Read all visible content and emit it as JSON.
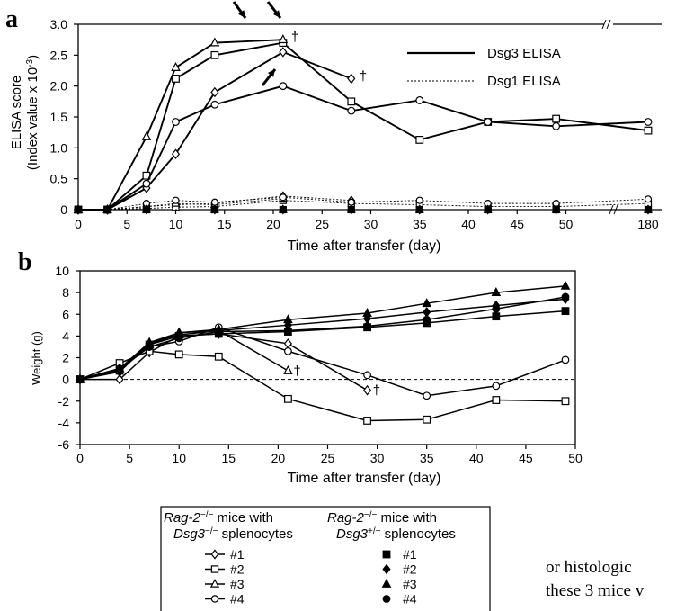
{
  "chart_data": [
    {
      "panel": "a",
      "type": "line",
      "ylabel": [
        "ELISA score",
        "(Index value x 10",
        "-3",
        ")"
      ],
      "xlabel": "Time after transfer (day)",
      "xticks": [
        "0",
        "5",
        "10",
        "15",
        "20",
        "25",
        "30",
        "35",
        "40",
        "45",
        "50",
        "180"
      ],
      "yticks": [
        "0",
        "0.5",
        "1.0",
        "1.5",
        "2.0",
        "2.5",
        "3.0"
      ],
      "ylim": [
        0,
        3.0
      ],
      "legend": [
        {
          "label": "Dsg3 ELISA",
          "style": "solid"
        },
        {
          "label": "Dsg1 ELISA",
          "style": "dotted"
        }
      ],
      "dagger": "†",
      "series": [
        {
          "legend": "Dsg3",
          "mouse": "#1",
          "group": "Dsg3-/-",
          "marker": "diamond-open",
          "dsg3": [
            [
              0,
              0
            ],
            [
              3,
              0
            ],
            [
              7,
              0.35
            ],
            [
              10,
              0.9
            ],
            [
              14,
              1.9
            ],
            [
              21,
              2.55
            ],
            [
              28,
              2.12
            ]
          ],
          "dsg1": [
            [
              0,
              0
            ],
            [
              3,
              0
            ],
            [
              7,
              0.05
            ],
            [
              10,
              0.08
            ],
            [
              14,
              0.1
            ],
            [
              21,
              0.22
            ],
            [
              28,
              0.15
            ]
          ]
        },
        {
          "legend": "Dsg3",
          "mouse": "#2",
          "group": "Dsg3-/-",
          "marker": "square-open",
          "dsg3": [
            [
              0,
              0
            ],
            [
              3,
              0
            ],
            [
              7,
              0.55
            ],
            [
              10,
              2.12
            ],
            [
              14,
              2.5
            ],
            [
              21,
              2.7
            ],
            [
              28,
              1.75
            ],
            [
              35,
              1.13
            ],
            [
              42,
              1.42
            ],
            [
              49,
              1.47
            ],
            [
              180,
              1.28
            ]
          ],
          "dsg1": [
            [
              0,
              0
            ],
            [
              3,
              0
            ],
            [
              7,
              0.02
            ],
            [
              10,
              0.04
            ],
            [
              14,
              0.05
            ],
            [
              21,
              0.15
            ],
            [
              28,
              0.1
            ],
            [
              35,
              0.08
            ],
            [
              42,
              0.05
            ],
            [
              49,
              0.05
            ],
            [
              180,
              0.1
            ]
          ]
        },
        {
          "legend": "Dsg3",
          "mouse": "#3",
          "group": "Dsg3-/-",
          "marker": "triangle-open",
          "dsg3": [
            [
              0,
              0
            ],
            [
              3,
              0
            ],
            [
              7,
              1.18
            ],
            [
              10,
              2.3
            ],
            [
              14,
              2.7
            ],
            [
              21,
              2.75
            ]
          ],
          "dsg1": [
            [
              0,
              0
            ],
            [
              3,
              0
            ],
            [
              7,
              0.05
            ],
            [
              10,
              0.1
            ],
            [
              14,
              0.08
            ],
            [
              21,
              0.18
            ]
          ]
        },
        {
          "legend": "Dsg3",
          "mouse": "#4",
          "group": "Dsg3-/-",
          "marker": "circle-open",
          "dsg3": [
            [
              0,
              0
            ],
            [
              3,
              0
            ],
            [
              7,
              0.42
            ],
            [
              10,
              1.42
            ],
            [
              14,
              1.7
            ],
            [
              21,
              2.0
            ],
            [
              28,
              1.6
            ],
            [
              35,
              1.77
            ],
            [
              42,
              1.42
            ],
            [
              49,
              1.35
            ],
            [
              180,
              1.42
            ]
          ],
          "dsg1": [
            [
              0,
              0
            ],
            [
              3,
              0
            ],
            [
              7,
              0.1
            ],
            [
              10,
              0.15
            ],
            [
              14,
              0.12
            ],
            [
              21,
              0.2
            ],
            [
              28,
              0.12
            ],
            [
              35,
              0.15
            ],
            [
              42,
              0.1
            ],
            [
              49,
              0.1
            ],
            [
              180,
              0.17
            ]
          ]
        },
        {
          "legend": "Dsg3",
          "mouse": "#1",
          "group": "Dsg3+/-",
          "marker": "square-filled",
          "dsg1": [
            [
              0,
              0
            ],
            [
              3,
              0
            ],
            [
              7,
              0
            ],
            [
              14,
              0
            ],
            [
              21,
              0
            ],
            [
              28,
              0
            ],
            [
              35,
              0
            ],
            [
              42,
              0
            ],
            [
              49,
              0
            ],
            [
              180,
              0
            ]
          ]
        },
        {
          "legend": "Dsg3",
          "mouse": "#2",
          "group": "Dsg3+/-",
          "marker": "diamond-filled",
          "dsg1": [
            [
              0,
              0
            ],
            [
              3,
              0
            ],
            [
              7,
              0
            ],
            [
              14,
              0
            ],
            [
              21,
              0
            ],
            [
              28,
              0
            ],
            [
              35,
              0
            ],
            [
              42,
              0
            ],
            [
              49,
              0
            ],
            [
              180,
              0
            ]
          ]
        },
        {
          "legend": "Dsg3",
          "mouse": "#3",
          "group": "Dsg3+/-",
          "marker": "triangle-filled",
          "dsg1": [
            [
              0,
              0
            ],
            [
              3,
              0
            ],
            [
              7,
              0
            ],
            [
              14,
              0
            ],
            [
              21,
              0
            ],
            [
              28,
              0
            ],
            [
              35,
              0
            ],
            [
              42,
              0
            ],
            [
              49,
              0
            ],
            [
              180,
              0
            ]
          ]
        },
        {
          "legend": "Dsg3",
          "mouse": "#4",
          "group": "Dsg3+/-",
          "marker": "circle-filled",
          "dsg1": [
            [
              0,
              0
            ],
            [
              3,
              0
            ],
            [
              7,
              0
            ],
            [
              14,
              0
            ],
            [
              21,
              0
            ],
            [
              28,
              0
            ],
            [
              35,
              0
            ],
            [
              42,
              0
            ],
            [
              49,
              0
            ],
            [
              180,
              0
            ]
          ]
        }
      ],
      "daggers_at": [
        [
          21,
          2.75
        ],
        [
          28,
          2.12
        ]
      ],
      "arrows_at": [
        [
          14,
          2.7
        ],
        [
          21,
          2.75
        ],
        [
          21,
          2.55
        ]
      ]
    },
    {
      "panel": "b",
      "type": "line",
      "ylabel": "Weight (g)",
      "xlabel": "Time after transfer (day)",
      "xticks": [
        "0",
        "5",
        "10",
        "15",
        "20",
        "25",
        "30",
        "35",
        "40",
        "45",
        "50"
      ],
      "yticks": [
        "-6",
        "-4",
        "-2",
        "0",
        "2",
        "4",
        "6",
        "8",
        "10"
      ],
      "xlim": [
        0,
        50
      ],
      "ylim": [
        -6,
        10
      ],
      "dagger": "†",
      "series": [
        {
          "mouse": "#1",
          "group": "Dsg3-/-",
          "marker": "diamond-open",
          "values": [
            [
              0,
              0
            ],
            [
              4,
              0
            ],
            [
              7,
              2.5
            ],
            [
              10,
              4
            ],
            [
              14,
              4.2
            ],
            [
              21,
              3.3
            ],
            [
              29,
              -1.0
            ]
          ]
        },
        {
          "mouse": "#2",
          "group": "Dsg3-/-",
          "marker": "square-open",
          "values": [
            [
              0,
              0
            ],
            [
              4,
              1.5
            ],
            [
              7,
              2.6
            ],
            [
              10,
              2.3
            ],
            [
              14,
              2.1
            ],
            [
              21,
              -1.8
            ],
            [
              29,
              -3.8
            ],
            [
              35,
              -3.7
            ],
            [
              42,
              -1.9
            ],
            [
              49,
              -2.0
            ]
          ]
        },
        {
          "mouse": "#3",
          "group": "Dsg3-/-",
          "marker": "triangle-open",
          "values": [
            [
              0,
              0
            ],
            [
              4,
              1
            ],
            [
              7,
              3.2
            ],
            [
              10,
              4.3
            ],
            [
              14,
              4.5
            ],
            [
              21,
              0.8
            ]
          ]
        },
        {
          "mouse": "#4",
          "group": "Dsg3-/-",
          "marker": "circle-open",
          "values": [
            [
              0,
              0
            ],
            [
              4,
              1
            ],
            [
              7,
              3
            ],
            [
              10,
              3.5
            ],
            [
              14,
              4.8
            ],
            [
              21,
              2.6
            ],
            [
              29,
              0.4
            ],
            [
              35,
              -1.5
            ],
            [
              42,
              -0.6
            ],
            [
              49,
              1.8
            ]
          ]
        },
        {
          "mouse": "#1",
          "group": "Dsg3+/-",
          "marker": "square-filled",
          "values": [
            [
              0,
              0
            ],
            [
              4,
              0.8
            ],
            [
              7,
              3.2
            ],
            [
              10,
              4
            ],
            [
              14,
              4.2
            ],
            [
              21,
              4.4
            ],
            [
              29,
              4.8
            ],
            [
              35,
              5.2
            ],
            [
              42,
              5.8
            ],
            [
              49,
              6.3
            ]
          ]
        },
        {
          "mouse": "#2",
          "group": "Dsg3+/-",
          "marker": "diamond-filled",
          "values": [
            [
              0,
              0
            ],
            [
              4,
              0.7
            ],
            [
              7,
              3.3
            ],
            [
              10,
              4.1
            ],
            [
              14,
              4.5
            ],
            [
              21,
              5
            ],
            [
              29,
              5.6
            ],
            [
              35,
              6.2
            ],
            [
              42,
              6.8
            ],
            [
              49,
              7.4
            ]
          ]
        },
        {
          "mouse": "#3",
          "group": "Dsg3+/-",
          "marker": "triangle-filled",
          "values": [
            [
              0,
              0
            ],
            [
              4,
              1
            ],
            [
              7,
              3.4
            ],
            [
              10,
              4.3
            ],
            [
              14,
              4.6
            ],
            [
              21,
              5.5
            ],
            [
              29,
              6.1
            ],
            [
              35,
              7
            ],
            [
              42,
              8
            ],
            [
              49,
              8.6
            ]
          ]
        },
        {
          "mouse": "#4",
          "group": "Dsg3+/-",
          "marker": "circle-filled",
          "values": [
            [
              0,
              0
            ],
            [
              4,
              0.9
            ],
            [
              7,
              3
            ],
            [
              10,
              3.8
            ],
            [
              14,
              4.4
            ],
            [
              21,
              4.5
            ],
            [
              29,
              4.9
            ],
            [
              35,
              5.5
            ],
            [
              42,
              6.5
            ],
            [
              49,
              7.6
            ]
          ]
        }
      ],
      "daggers_at": [
        [
          21,
          0.8
        ],
        [
          29,
          -1.0
        ]
      ]
    }
  ],
  "legend_box": {
    "left_title_1": "Rag-2",
    "left_title_sup": "−/−",
    "left_title_2": " mice with",
    "left_sub_1": "Dsg3",
    "left_sub_sup": "−/−",
    "left_sub_2": " splenocytes",
    "right_title_1": "Rag-2",
    "right_title_sup": "−/−",
    "right_title_2": " mice with",
    "right_sub_1": "Dsg3",
    "right_sub_sup": "+/−",
    "right_sub_2": " splenocytes",
    "items_left": [
      "#1",
      "#2",
      "#3",
      "#4"
    ],
    "items_right": [
      "#1",
      "#2",
      "#3",
      "#4"
    ]
  },
  "side_text": {
    "line1": "or histologic",
    "line2": "these 3 mice v"
  }
}
